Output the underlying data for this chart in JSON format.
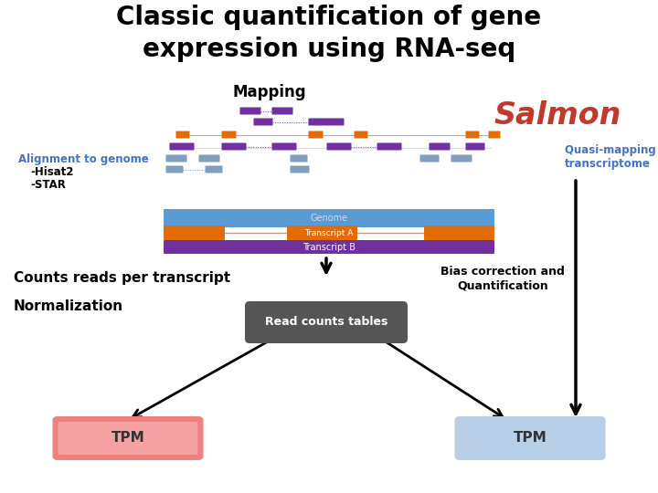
{
  "title": "Classic quantification of gene\nexpression using RNA-seq",
  "title_fontsize": 20,
  "bg_color": "#ffffff",
  "salmon_text": "Salmon",
  "salmon_color": "#c0392b",
  "mapping_text": "Mapping",
  "alignment_line1": "Alignment to genome",
  "alignment_line2": "-Hisat2",
  "alignment_line3": "-STAR",
  "alignment_color": "#4472c4",
  "quasi_text": "Quasi-mapping to\ntranscriptome",
  "quasi_color": "#4472c4",
  "genome_color": "#5b9bd5",
  "transcript_a_color": "#e36c09",
  "transcript_a_thin_color": "#d4a070",
  "transcript_b_color": "#7030a0",
  "read_box_color_top": "#707070",
  "read_box_color_bot": "#404040",
  "read_box_text": "Read counts tables",
  "tpm_left_color_top": "#f4a0a0",
  "tpm_left_color_bot": "#f0c0c0",
  "tpm_right_color": "#b8cfe8",
  "tpm_text": "TPM",
  "counts_text": "Counts reads per transcript",
  "norm_text": "Normalization",
  "bias_text": "Bias correction and\nQuantification",
  "purple": "#7030a0",
  "orange": "#e36c09",
  "steel_blue": "#7f9ec0",
  "arrow_color": "#000000"
}
